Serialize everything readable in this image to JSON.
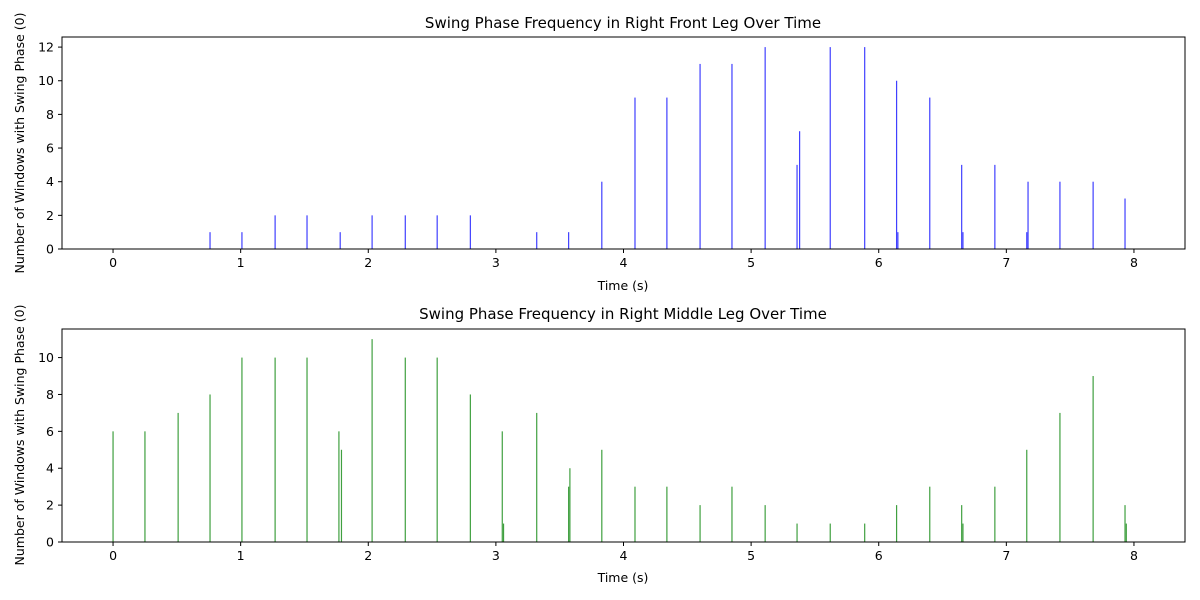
{
  "chart_data": [
    {
      "type": "bar",
      "title": "Swing Phase Frequency in Right Front Leg Over Time",
      "xlabel": "Time (s)",
      "ylabel": "Number of Windows with Swing Phase (0)",
      "xlim": [
        -0.4,
        8.4
      ],
      "ylim": [
        0,
        12.6
      ],
      "xticks": [
        0,
        1,
        2,
        3,
        4,
        5,
        6,
        7,
        8
      ],
      "yticks": [
        0,
        2,
        4,
        6,
        8,
        10,
        12
      ],
      "bar_color": "#0000ff",
      "grid": false,
      "legend": "none",
      "x": [
        0.76,
        1.01,
        1.27,
        1.52,
        1.78,
        2.03,
        2.29,
        2.54,
        2.8,
        3.32,
        3.57,
        3.83,
        4.09,
        4.34,
        4.6,
        4.85,
        5.11,
        5.36,
        5.38,
        5.62,
        5.89,
        6.14,
        6.15,
        6.4,
        6.65,
        6.66,
        6.91,
        7.16,
        7.17,
        7.42,
        7.68,
        7.93
      ],
      "values": [
        1,
        1,
        2,
        2,
        1,
        2,
        2,
        2,
        2,
        1,
        1,
        4,
        9,
        9,
        11,
        11,
        12,
        5,
        7,
        12,
        12,
        10,
        1,
        9,
        5,
        1,
        5,
        1,
        4,
        4,
        4,
        3
      ]
    },
    {
      "type": "bar",
      "title": "Swing Phase Frequency in Right Middle Leg Over Time",
      "xlabel": "Time (s)",
      "ylabel": "Number of Windows with Swing Phase (0)",
      "xlim": [
        -0.4,
        8.4
      ],
      "ylim": [
        0,
        11.55
      ],
      "xticks": [
        0,
        1,
        2,
        3,
        4,
        5,
        6,
        7,
        8
      ],
      "yticks": [
        0,
        2,
        4,
        6,
        8,
        10
      ],
      "bar_color": "#008000",
      "grid": false,
      "legend": "none",
      "x": [
        0.0,
        0.25,
        0.51,
        0.76,
        1.01,
        1.27,
        1.52,
        1.77,
        1.79,
        2.03,
        2.29,
        2.54,
        2.8,
        3.05,
        3.06,
        3.32,
        3.57,
        3.58,
        3.83,
        4.09,
        4.34,
        4.6,
        4.85,
        5.11,
        5.36,
        5.62,
        5.89,
        6.14,
        6.4,
        6.65,
        6.66,
        6.91,
        7.16,
        7.42,
        7.68,
        7.93,
        7.94
      ],
      "values": [
        6,
        6,
        7,
        8,
        10,
        10,
        10,
        6,
        5,
        11,
        10,
        10,
        8,
        6,
        1,
        7,
        3,
        4,
        5,
        3,
        3,
        2,
        3,
        2,
        1,
        1,
        1,
        2,
        3,
        2,
        1,
        3,
        5,
        7,
        9,
        2,
        1
      ]
    }
  ]
}
